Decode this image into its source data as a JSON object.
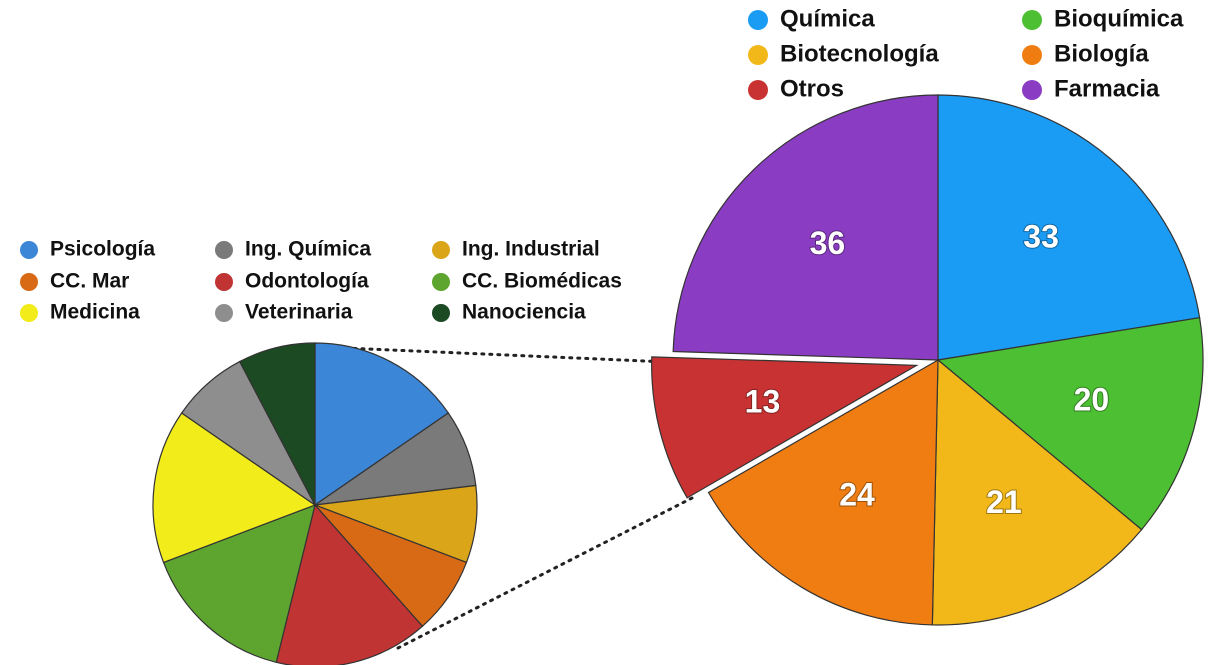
{
  "chart_data": [
    {
      "type": "pie",
      "categories": [
        "Química",
        "Bioquímica",
        "Biotecnología",
        "Biología",
        "Otros",
        "Farmacia"
      ],
      "values": [
        33,
        20,
        21,
        24,
        13,
        36
      ],
      "colors": [
        "#1a9cf5",
        "#4cbf32",
        "#f2b81a",
        "#f07d12",
        "#c93232",
        "#8a3dc2"
      ]
    },
    {
      "type": "pie",
      "categories": [
        "Psicología",
        "Ing. Química",
        "Ing. Industrial",
        "CC. Mar",
        "Odontología",
        "CC. Biomédicas",
        "Medicina",
        "Veterinaria",
        "Nanociencia"
      ],
      "values": [
        2,
        1,
        1,
        1,
        2,
        2,
        2,
        1,
        1
      ],
      "colors": [
        "#3c86d8",
        "#7a7a7a",
        "#dba51a",
        "#d86a16",
        "#c03434",
        "#5ea530",
        "#f2ec1a",
        "#8e8e8e",
        "#1c4a22"
      ]
    }
  ]
}
